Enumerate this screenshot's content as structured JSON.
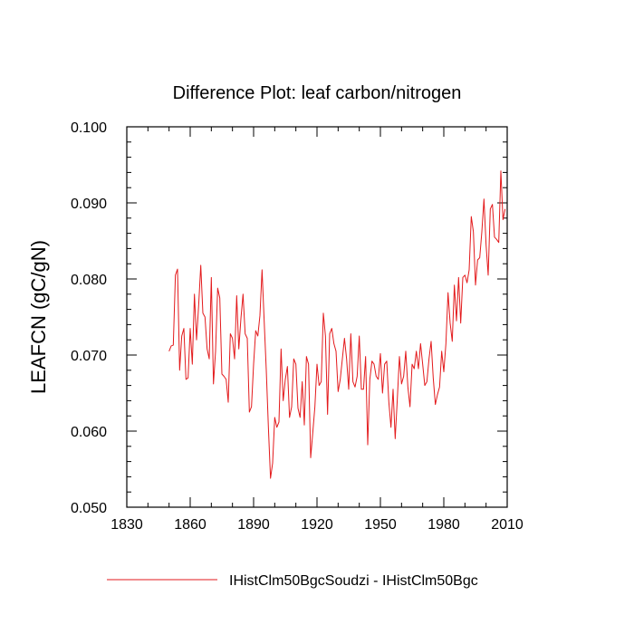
{
  "chart_data": {
    "type": "line",
    "title": "Difference Plot: leaf carbon/nitrogen",
    "xlabel": "",
    "ylabel": "LEAFCN  (gC/gN)",
    "xlim": [
      1830,
      2010
    ],
    "ylim": [
      0.05,
      0.1
    ],
    "x_ticks": [
      1830,
      1860,
      1890,
      1920,
      1950,
      1980,
      2010
    ],
    "x_tick_labels": [
      "1830",
      "1860",
      "1890",
      "1920",
      "1950",
      "1980",
      "2010"
    ],
    "y_ticks": [
      0.05,
      0.06,
      0.07,
      0.08,
      0.09,
      0.1
    ],
    "y_tick_labels": [
      "0.050",
      "0.060",
      "0.070",
      "0.080",
      "0.090",
      "0.100"
    ],
    "grid": false,
    "legend_position": "bottom",
    "series": [
      {
        "name": "IHistClm50BgcSoudzi - IHistClm50Bgc",
        "color": "#e31a1c",
        "x": [
          1850,
          1851,
          1852,
          1853,
          1854,
          1855,
          1856,
          1857,
          1858,
          1859,
          1860,
          1861,
          1862,
          1863,
          1864,
          1865,
          1866,
          1867,
          1868,
          1869,
          1870,
          1871,
          1872,
          1873,
          1874,
          1875,
          1876,
          1877,
          1878,
          1879,
          1880,
          1881,
          1882,
          1883,
          1884,
          1885,
          1886,
          1887,
          1888,
          1889,
          1890,
          1891,
          1892,
          1893,
          1894,
          1895,
          1896,
          1897,
          1898,
          1899,
          1900,
          1901,
          1902,
          1903,
          1904,
          1905,
          1906,
          1907,
          1908,
          1909,
          1910,
          1911,
          1912,
          1913,
          1914,
          1915,
          1916,
          1917,
          1918,
          1919,
          1920,
          1921,
          1922,
          1923,
          1924,
          1925,
          1926,
          1927,
          1928,
          1929,
          1930,
          1931,
          1932,
          1933,
          1934,
          1935,
          1936,
          1937,
          1938,
          1939,
          1940,
          1941,
          1942,
          1943,
          1944,
          1945,
          1946,
          1947,
          1948,
          1949,
          1950,
          1951,
          1952,
          1953,
          1954,
          1955,
          1956,
          1957,
          1958,
          1959,
          1960,
          1961,
          1962,
          1963,
          1964,
          1965,
          1966,
          1967,
          1968,
          1969,
          1970,
          1971,
          1972,
          1973,
          1974,
          1975,
          1976,
          1977,
          1978,
          1979,
          1980,
          1981,
          1982,
          1983,
          1984,
          1985,
          1986,
          1987,
          1988,
          1989,
          1990,
          1991,
          1992,
          1993,
          1994,
          1995,
          1996,
          1997,
          1998,
          1999,
          2000,
          2001,
          2002,
          2003,
          2004,
          2005,
          2006,
          2007,
          2008,
          2009
        ],
        "y": [
          0.0705,
          0.0712,
          0.0713,
          0.0805,
          0.0813,
          0.068,
          0.0725,
          0.0735,
          0.0668,
          0.067,
          0.0735,
          0.0688,
          0.078,
          0.072,
          0.0765,
          0.0818,
          0.0755,
          0.075,
          0.0708,
          0.0695,
          0.0802,
          0.0662,
          0.0705,
          0.0788,
          0.0775,
          0.0675,
          0.0672,
          0.0668,
          0.0638,
          0.0728,
          0.0722,
          0.0695,
          0.0778,
          0.0708,
          0.0748,
          0.078,
          0.0728,
          0.0722,
          0.0625,
          0.0632,
          0.0688,
          0.0732,
          0.0725,
          0.0752,
          0.0812,
          0.0745,
          0.068,
          0.0605,
          0.0538,
          0.0558,
          0.0618,
          0.0605,
          0.0612,
          0.0708,
          0.064,
          0.0668,
          0.0685,
          0.0618,
          0.0632,
          0.0695,
          0.0688,
          0.063,
          0.0618,
          0.0665,
          0.0608,
          0.0698,
          0.0688,
          0.0565,
          0.0598,
          0.0632,
          0.0688,
          0.066,
          0.0665,
          0.0755,
          0.0725,
          0.0622,
          0.0728,
          0.0735,
          0.0715,
          0.0705,
          0.0652,
          0.0668,
          0.0695,
          0.0722,
          0.0695,
          0.0655,
          0.0728,
          0.0665,
          0.0658,
          0.0672,
          0.0725,
          0.0655,
          0.0655,
          0.0698,
          0.0582,
          0.0668,
          0.0692,
          0.0688,
          0.0672,
          0.0668,
          0.0702,
          0.065,
          0.0688,
          0.0692,
          0.0638,
          0.0605,
          0.0655,
          0.059,
          0.0642,
          0.0698,
          0.0662,
          0.0672,
          0.0705,
          0.0658,
          0.0632,
          0.0688,
          0.0682,
          0.0705,
          0.0682,
          0.0715,
          0.0688,
          0.066,
          0.0665,
          0.0695,
          0.0718,
          0.067,
          0.0635,
          0.0648,
          0.0658,
          0.0705,
          0.0678,
          0.0715,
          0.0782,
          0.0742,
          0.0718,
          0.0792,
          0.0745,
          0.0802,
          0.0742,
          0.0802,
          0.0805,
          0.0795,
          0.0812,
          0.0882,
          0.0862,
          0.0792,
          0.0825,
          0.0828,
          0.0862,
          0.0905,
          0.0845,
          0.0805,
          0.0892,
          0.0898,
          0.0855,
          0.0852,
          0.0848,
          0.0942,
          0.0878,
          0.0892
        ]
      }
    ]
  }
}
